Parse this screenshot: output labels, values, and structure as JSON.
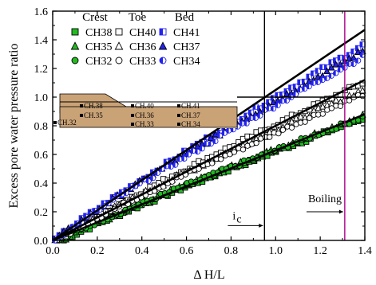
{
  "chart_data": {
    "type": "scatter",
    "xlabel": "Δ H/L",
    "ylabel": "Excess pore water pressure ratio",
    "xlim": [
      0.0,
      1.4
    ],
    "ylim": [
      0.0,
      1.6
    ],
    "xticks": [
      0.0,
      0.2,
      0.4,
      0.6,
      0.8,
      1.0,
      1.2,
      1.4
    ],
    "yticks": [
      0.0,
      0.2,
      0.4,
      0.6,
      0.8,
      1.0,
      1.2,
      1.4,
      1.6
    ],
    "xtick_labels": [
      "0.0",
      "0.2",
      "0.4",
      "0.6",
      "0.8",
      "1.0",
      "1.2",
      "1.4"
    ],
    "ytick_labels": [
      "0.0",
      "0.2",
      "0.4",
      "0.6",
      "0.8",
      "1.0",
      "1.2",
      "1.4",
      "1.6"
    ],
    "grid": false,
    "legend": {
      "placement": "top-left",
      "groups": [
        {
          "title": "Crest",
          "entries": [
            "CH38",
            "CH35",
            "CH32"
          ]
        },
        {
          "title": "Toe",
          "entries": [
            "CH40",
            "CH36",
            "CH33"
          ]
        },
        {
          "title": "Bed",
          "entries": [
            "CH41",
            "CH37",
            "CH34"
          ]
        }
      ]
    },
    "series": [
      {
        "name": "CH38",
        "marker": "square-filled",
        "color": "#22bb22",
        "x_start": 0.05,
        "x_end": 1.39,
        "y_start": 0.0,
        "y_end": 0.85
      },
      {
        "name": "CH35",
        "marker": "triangle-filled",
        "color": "#22bb22",
        "x_start": 0.04,
        "x_end": 1.39,
        "y_start": 0.0,
        "y_end": 0.87
      },
      {
        "name": "CH32",
        "marker": "circle-filled",
        "color": "#22bb22",
        "x_start": 0.03,
        "x_end": 1.39,
        "y_start": 0.0,
        "y_end": 0.86
      },
      {
        "name": "CH40",
        "marker": "square-open",
        "color": "#000000",
        "x_start": 0.02,
        "x_end": 1.39,
        "y_start": 0.0,
        "y_end": 1.1
      },
      {
        "name": "CH36",
        "marker": "triangle-open",
        "color": "#000000",
        "x_start": 0.02,
        "x_end": 1.39,
        "y_start": 0.0,
        "y_end": 1.05
      },
      {
        "name": "CH33",
        "marker": "circle-open",
        "color": "#000000",
        "x_start": 0.02,
        "x_end": 1.39,
        "y_start": 0.0,
        "y_end": 1.02
      },
      {
        "name": "CH41",
        "marker": "square-half",
        "color": "#2222ee",
        "x_start": 0.01,
        "x_end": 1.39,
        "y_start": 0.0,
        "y_end": 1.36
      },
      {
        "name": "CH37",
        "marker": "triangle-filled",
        "color": "#2222ee",
        "x_start": 0.01,
        "x_end": 1.39,
        "y_start": 0.0,
        "y_end": 1.32
      },
      {
        "name": "CH34",
        "marker": "circle-half",
        "color": "#2222ee",
        "x_start": 0.01,
        "x_end": 1.39,
        "y_start": 0.0,
        "y_end": 1.28
      }
    ],
    "reference_lines": [
      {
        "x": [
          0.0,
          1.4
        ],
        "y": [
          0.0,
          1.47
        ]
      },
      {
        "x": [
          0.0,
          1.4
        ],
        "y": [
          0.0,
          1.12
        ]
      },
      {
        "x": [
          0.0,
          1.4
        ],
        "y": [
          0.0,
          0.88
        ]
      }
    ],
    "hlines": [
      {
        "y": 1.0
      }
    ],
    "vlines": [
      {
        "x": 0.95,
        "color": "#000000"
      },
      {
        "x": 1.31,
        "color": "#aa0088"
      }
    ],
    "annotations": [
      {
        "text": "Boiling",
        "x": 1.16,
        "y": 0.2
      },
      {
        "text": "i",
        "subscript": "c",
        "x": 0.85,
        "y": 0.07
      }
    ],
    "inset": {
      "fill": "#c9a276",
      "labels": [
        "CH.38",
        "CH.40",
        "CH.41",
        "CH.35",
        "CH.36",
        "CH.37",
        "CH.32",
        "CH.33",
        "CH.34"
      ]
    }
  }
}
